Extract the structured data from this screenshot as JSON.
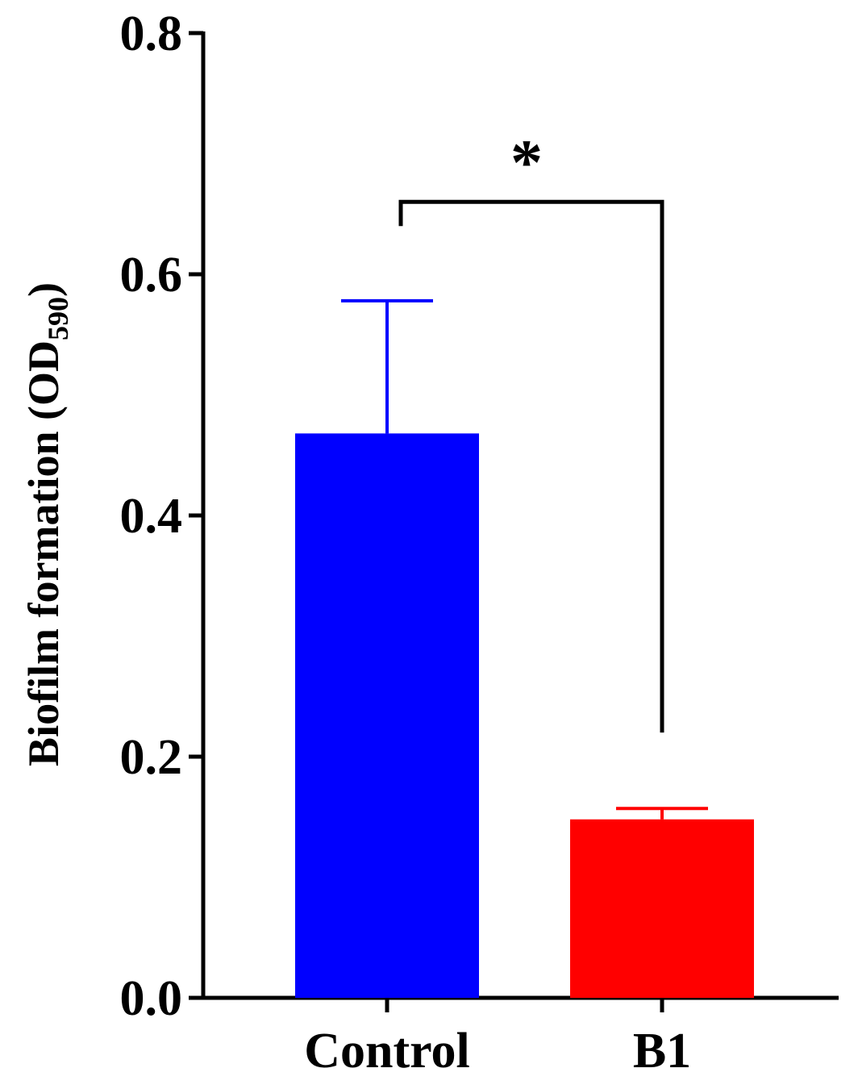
{
  "chart_data": {
    "type": "bar",
    "title": "",
    "xlabel": "",
    "ylabel": {
      "main": "Biofilm formation (OD",
      "subscript": "590",
      "close": ")"
    },
    "ylim": [
      0,
      0.8
    ],
    "yticks": [
      "0.0",
      "0.2",
      "0.4",
      "0.6",
      "0.8"
    ],
    "categories": [
      "Control",
      "B1"
    ],
    "values": [
      0.468,
      0.148
    ],
    "error": [
      0.11,
      0.009
    ],
    "colors": [
      "#0000ff",
      "#ff0000"
    ],
    "significance": {
      "label": "*",
      "between": [
        0,
        1
      ],
      "bracket_y": 0.66,
      "left_end_y": 0.64,
      "right_end_y": 0.22
    },
    "grid": false,
    "legend": "none"
  }
}
